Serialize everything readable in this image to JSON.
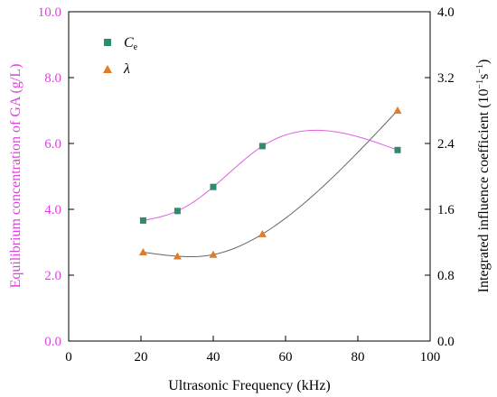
{
  "chart_data": {
    "type": "scatter",
    "xlabel": "Ultrasonic Frequency (kHz)",
    "ylabel_left": "Equilibrium concentration of  GA (g/L)",
    "ylabel_right": "Integrated influence coefficient (10",
    "ylabel_right_sup": "−1",
    "ylabel_right_mid": "s",
    "ylabel_right_sup2": "−1",
    "ylabel_right_end": ")",
    "xlim": [
      0,
      100
    ],
    "ylim_left": [
      0.0,
      10.0
    ],
    "ylim_right": [
      0.0,
      4.0
    ],
    "x_ticks": [
      "0",
      "20",
      "40",
      "60",
      "80",
      "100"
    ],
    "y_left_ticks": [
      "0.0",
      "2.0",
      "4.0",
      "6.0",
      "8.0",
      "10.0"
    ],
    "y_right_ticks": [
      "0.0",
      "0.8",
      "1.6",
      "2.4",
      "3.2",
      "4.0"
    ],
    "legend_position": "top-left",
    "series": [
      {
        "name": "C",
        "name_sub": "e",
        "axis": "left",
        "marker": "square",
        "color": "#2e8b6b",
        "fit_color": "#e060e0",
        "x": [
          20.6,
          30.1,
          40.0,
          53.6,
          91.0
        ],
        "y": [
          3.66,
          3.95,
          4.68,
          5.92,
          5.8
        ]
      },
      {
        "name": "λ",
        "axis": "right",
        "marker": "triangle",
        "color": "#e07b2a",
        "fit_color": "#666666",
        "x": [
          20.6,
          30.1,
          40.0,
          53.6,
          91.0
        ],
        "y": [
          1.08,
          1.03,
          1.05,
          1.3,
          2.8
        ]
      }
    ]
  },
  "colors": {
    "left_axis": "#e040e0",
    "right_axis": "#000000",
    "frame": "#000000"
  }
}
